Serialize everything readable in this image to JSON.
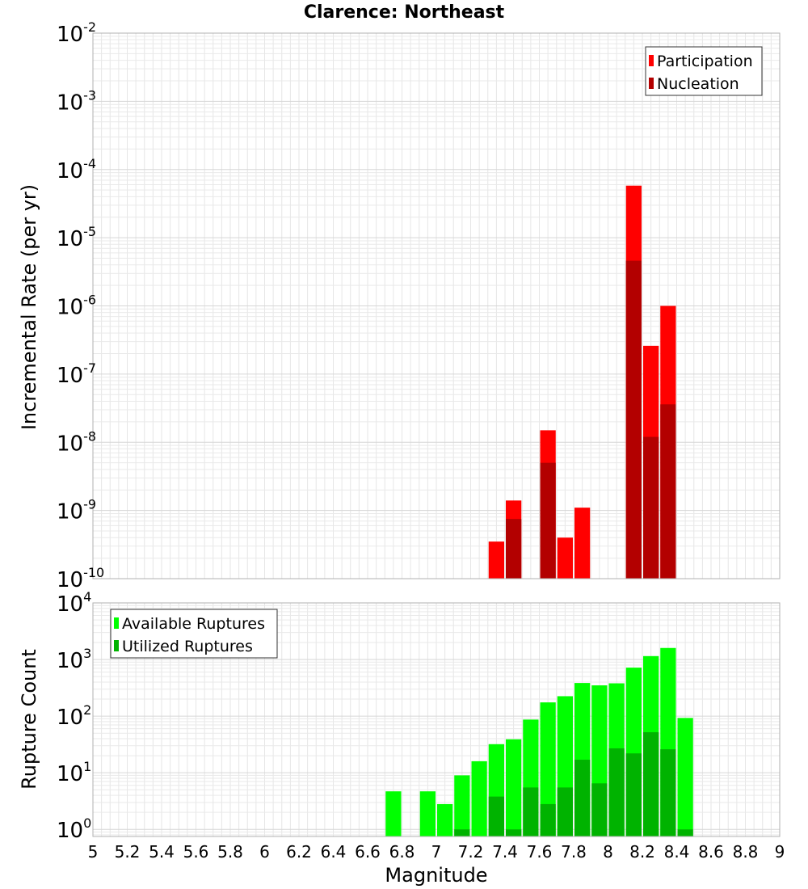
{
  "chart_data": [
    {
      "type": "bar",
      "title": "Clarence: Northeast",
      "xlabel": "",
      "ylabel": "Incremental Rate (per yr)",
      "yscale": "log",
      "ylim": [
        1e-10,
        0.01
      ],
      "xlim": [
        5,
        9
      ],
      "y_tick_exponents": [
        "-10",
        "-9",
        "-8",
        "-7",
        "-6",
        "-5",
        "-4",
        "-3",
        "-2"
      ],
      "legend": {
        "placement": "top-right",
        "entries": [
          "Participation",
          "Nucleation"
        ]
      },
      "grid": true,
      "bin_width": 0.1,
      "series": [
        {
          "name": "Participation",
          "color": "#ff0000",
          "points": [
            {
              "x": 7.35,
              "y": 3.5e-10
            },
            {
              "x": 7.45,
              "y": 1.4e-09
            },
            {
              "x": 7.65,
              "y": 1.5e-08
            },
            {
              "x": 7.75,
              "y": 4e-10
            },
            {
              "x": 7.85,
              "y": 1.1e-09
            },
            {
              "x": 8.15,
              "y": 5.8e-05
            },
            {
              "x": 8.25,
              "y": 2.6e-07
            },
            {
              "x": 8.35,
              "y": 1e-06
            }
          ]
        },
        {
          "name": "Nucleation",
          "color": "#b30000",
          "points": [
            {
              "x": 7.45,
              "y": 7.5e-10
            },
            {
              "x": 7.65,
              "y": 5e-09
            },
            {
              "x": 8.15,
              "y": 4.6e-06
            },
            {
              "x": 8.25,
              "y": 1.2e-08
            },
            {
              "x": 8.35,
              "y": 3.6e-08
            }
          ]
        }
      ]
    },
    {
      "type": "bar",
      "title": "",
      "xlabel": "Magnitude",
      "ylabel": "Rupture Count",
      "yscale": "log",
      "ylim": [
        0.75,
        10000
      ],
      "xlim": [
        5,
        9
      ],
      "x_tick_labels": [
        "5",
        "5.2",
        "5.4",
        "5.6",
        "5.8",
        "6",
        "6.2",
        "6.4",
        "6.6",
        "6.8",
        "7",
        "7.2",
        "7.4",
        "7.6",
        "7.8",
        "8",
        "8.2",
        "8.4",
        "8.6",
        "8.8",
        "9"
      ],
      "y_tick_exponents": [
        "0",
        "1",
        "2",
        "3",
        "4"
      ],
      "legend": {
        "placement": "top-left",
        "entries": [
          "Available Ruptures",
          "Utilized Ruptures"
        ]
      },
      "grid": true,
      "bin_width": 0.1,
      "series": [
        {
          "name": "Available Ruptures",
          "color": "#00ff00",
          "points": [
            {
              "x": 6.75,
              "y": 4.7
            },
            {
              "x": 6.95,
              "y": 4.7
            },
            {
              "x": 7.05,
              "y": 2.8
            },
            {
              "x": 7.15,
              "y": 9
            },
            {
              "x": 7.25,
              "y": 16
            },
            {
              "x": 7.35,
              "y": 32
            },
            {
              "x": 7.45,
              "y": 39
            },
            {
              "x": 7.55,
              "y": 87
            },
            {
              "x": 7.65,
              "y": 175
            },
            {
              "x": 7.75,
              "y": 225
            },
            {
              "x": 7.85,
              "y": 385
            },
            {
              "x": 7.95,
              "y": 350
            },
            {
              "x": 8.05,
              "y": 380
            },
            {
              "x": 8.15,
              "y": 720
            },
            {
              "x": 8.25,
              "y": 1150
            },
            {
              "x": 8.35,
              "y": 1600
            },
            {
              "x": 8.45,
              "y": 93
            }
          ]
        },
        {
          "name": "Utilized Ruptures",
          "color": "#00b300",
          "points": [
            {
              "x": 7.15,
              "y": 1
            },
            {
              "x": 7.35,
              "y": 3.8
            },
            {
              "x": 7.45,
              "y": 1
            },
            {
              "x": 7.55,
              "y": 5.5
            },
            {
              "x": 7.65,
              "y": 2.8
            },
            {
              "x": 7.75,
              "y": 5.5
            },
            {
              "x": 7.85,
              "y": 17
            },
            {
              "x": 7.95,
              "y": 6.5
            },
            {
              "x": 8.05,
              "y": 27
            },
            {
              "x": 8.15,
              "y": 22
            },
            {
              "x": 8.25,
              "y": 52
            },
            {
              "x": 8.35,
              "y": 26
            },
            {
              "x": 8.45,
              "y": 1
            }
          ]
        }
      ]
    }
  ]
}
